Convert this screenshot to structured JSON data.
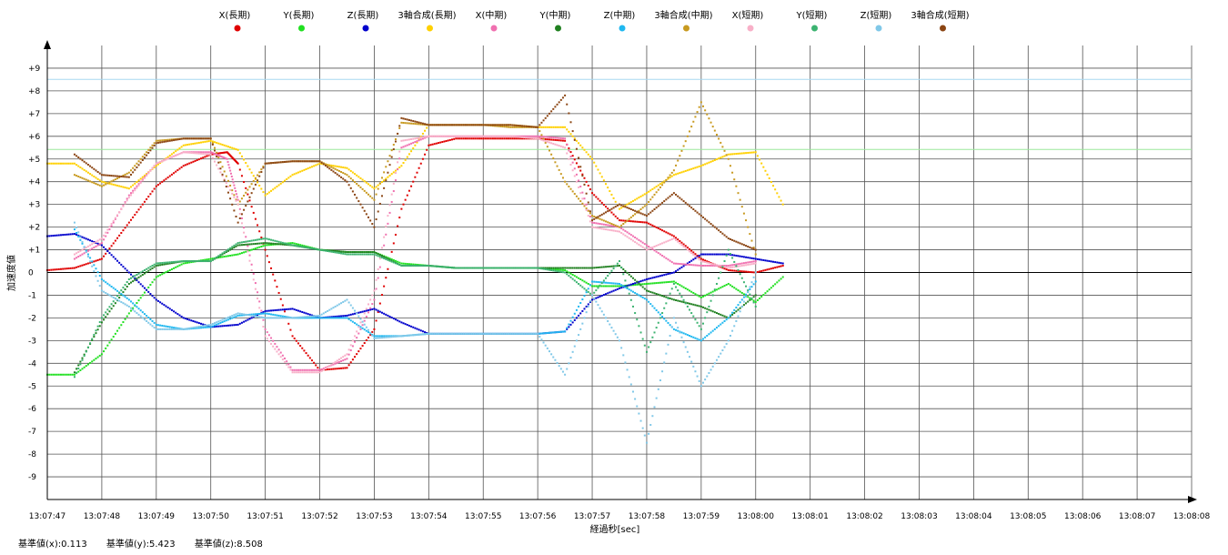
{
  "footer": {
    "base_x": "基準値(x):0.113",
    "base_y": "基準値(y):5.423",
    "base_z": "基準値(z):8.508"
  },
  "chart_data": {
    "type": "scatter",
    "xlabel": "経過秒[sec]",
    "ylabel": "加速度値",
    "ylim": [
      -10,
      10
    ],
    "x_ticks": [
      "13:07:47",
      "13:07:48",
      "13:07:49",
      "13:07:50",
      "13:07:51",
      "13:07:52",
      "13:07:53",
      "13:07:54",
      "13:07:55",
      "13:07:56",
      "13:07:57",
      "13:07:58",
      "13:07:59",
      "13:08:00",
      "13:08:01",
      "13:08:02",
      "13:08:03",
      "13:08:04",
      "13:08:05",
      "13:08:06",
      "13:08:07",
      "13:08:08"
    ],
    "y_ticks": [
      "-9",
      "-8",
      "-7",
      "-6",
      "-5",
      "-4",
      "-3",
      "-2",
      "-1",
      "0",
      "+1",
      "+2",
      "+3",
      "+4",
      "+5",
      "+6",
      "+7",
      "+8",
      "+9"
    ],
    "y_tick_values": [
      -9,
      -8,
      -7,
      -6,
      -5,
      -4,
      -3,
      -2,
      -1,
      0,
      1,
      2,
      3,
      4,
      5,
      6,
      7,
      8,
      9
    ],
    "grid": true,
    "legend_position": "top",
    "reference_lines": [
      {
        "value": 5.423,
        "color": "#9be89b"
      },
      {
        "value": 8.508,
        "color": "#a8d8f0"
      }
    ],
    "series": [
      {
        "name": "X(長期)",
        "color": "#e00000",
        "x": [
          0,
          0.5,
          1,
          1.5,
          2,
          2.5,
          3,
          3.3,
          3.5,
          4,
          4.5,
          5,
          5.5,
          6,
          6.5,
          7,
          7.5,
          8,
          8.5,
          9,
          9.5,
          10,
          10.5,
          11,
          11.5,
          12,
          12.5,
          13,
          13.5
        ],
        "y": [
          0.1,
          0.2,
          0.6,
          2.2,
          3.8,
          4.7,
          5.2,
          5.3,
          4.8,
          1.0,
          -2.8,
          -4.3,
          -4.2,
          -2.5,
          2.8,
          5.6,
          5.9,
          5.9,
          5.9,
          5.9,
          5.8,
          3.5,
          2.3,
          2.2,
          1.6,
          0.6,
          0.1,
          0,
          0.3
        ]
      },
      {
        "name": "Y(長期)",
        "color": "#20e020",
        "x": [
          0,
          0.5,
          1,
          1.5,
          2,
          2.5,
          3,
          3.5,
          4,
          4.5,
          5,
          5.5,
          6,
          6.5,
          7,
          7.5,
          8,
          8.5,
          9,
          9.5,
          10,
          10.5,
          11,
          11.5,
          12,
          12.5,
          13,
          13.5
        ],
        "y": [
          -4.5,
          -4.5,
          -3.6,
          -1.8,
          -0.2,
          0.4,
          0.6,
          0.8,
          1.2,
          1.3,
          1.0,
          0.9,
          0.9,
          0.4,
          0.3,
          0.2,
          0.2,
          0.2,
          0.2,
          0.1,
          -0.6,
          -0.6,
          -0.5,
          -0.4,
          -1.1,
          -0.5,
          -1.3,
          -0.2
        ]
      },
      {
        "name": "Z(長期)",
        "color": "#0000cc",
        "x": [
          0,
          0.5,
          1,
          1.5,
          2,
          2.5,
          3,
          3.5,
          4,
          4.5,
          5,
          5.5,
          6,
          6.5,
          7,
          7.5,
          8,
          8.5,
          9,
          9.5,
          10,
          10.5,
          11,
          11.5,
          12,
          12.5,
          13,
          13.5
        ],
        "y": [
          1.6,
          1.7,
          1.2,
          0,
          -1.2,
          -2.0,
          -2.4,
          -2.3,
          -1.7,
          -1.6,
          -2.0,
          -1.9,
          -1.6,
          -2.2,
          -2.7,
          -2.7,
          -2.7,
          -2.7,
          -2.7,
          -2.6,
          -1.2,
          -0.7,
          -0.3,
          0,
          0.8,
          0.8,
          0.6,
          0.4
        ]
      },
      {
        "name": "3軸合成(長期)",
        "color": "#ffd000",
        "x": [
          0,
          0.5,
          1,
          1.5,
          2,
          2.5,
          3,
          3.5,
          4,
          4.5,
          5,
          5.5,
          6,
          6.5,
          7,
          7.5,
          8,
          8.5,
          9,
          9.5,
          10,
          10.5,
          11,
          11.5,
          12,
          12.5,
          13,
          13.5
        ],
        "y": [
          4.8,
          4.8,
          4.0,
          3.7,
          4.7,
          5.6,
          5.8,
          5.4,
          3.4,
          4.3,
          4.8,
          4.6,
          3.7,
          4.7,
          6.5,
          6.5,
          6.5,
          6.5,
          6.4,
          6.4,
          5.0,
          2.8,
          3.5,
          4.3,
          4.7,
          5.2,
          5.3,
          3.0
        ]
      },
      {
        "name": "X(中期)",
        "color": "#f070b0",
        "x": [
          0.5,
          1,
          1.5,
          2,
          2.5,
          3,
          3.3,
          3.5,
          4,
          4.5,
          5,
          5.5,
          6,
          6.5,
          7,
          7.5,
          8,
          8.5,
          9,
          9.5,
          10,
          10.5,
          11,
          11.5,
          12,
          12.5,
          13
        ],
        "y": [
          0.6,
          1.3,
          3.4,
          4.8,
          5.3,
          5.3,
          5.0,
          3.2,
          -2.5,
          -4.3,
          -4.3,
          -3.8,
          -1.2,
          5.5,
          6.0,
          6.0,
          6.0,
          6.0,
          6.0,
          5.9,
          2.2,
          2.0,
          1.2,
          0.4,
          0.3,
          0.3,
          0.5
        ]
      },
      {
        "name": "Y(中期)",
        "color": "#208020",
        "x": [
          0.5,
          1,
          1.5,
          2,
          2.5,
          3,
          3.5,
          4,
          4.5,
          5,
          5.5,
          6,
          6.5,
          7,
          7.5,
          8,
          8.5,
          9,
          9.5,
          10,
          10.5,
          11,
          11.5,
          12,
          12.5,
          13
        ],
        "y": [
          -4.4,
          -2.2,
          -0.5,
          0.3,
          0.5,
          0.5,
          1.2,
          1.3,
          1.2,
          1.0,
          0.9,
          0.9,
          0.3,
          0.3,
          0.2,
          0.2,
          0.2,
          0.2,
          0.2,
          0.2,
          0.3,
          -0.8,
          -1.2,
          -1.5,
          -2.0,
          -1.0
        ]
      },
      {
        "name": "Z(中期)",
        "color": "#20b8f0",
        "x": [
          0.5,
          1,
          1.5,
          2,
          2.5,
          3,
          3.5,
          4,
          4.5,
          5,
          5.5,
          6,
          6.5,
          7,
          7.5,
          8,
          8.5,
          9,
          9.5,
          10,
          10.5,
          11,
          11.5,
          12,
          12.5,
          13
        ],
        "y": [
          1.9,
          -0.3,
          -1.2,
          -2.3,
          -2.5,
          -2.4,
          -1.9,
          -1.8,
          -2.0,
          -2.0,
          -2.0,
          -2.8,
          -2.8,
          -2.7,
          -2.7,
          -2.7,
          -2.7,
          -2.7,
          -2.6,
          -0.4,
          -0.5,
          -1.2,
          -2.5,
          -3.0,
          -2.0,
          -0.4
        ]
      },
      {
        "name": "3軸合成(中期)",
        "color": "#c89a20",
        "x": [
          0.5,
          1,
          1.5,
          2,
          2.5,
          3,
          3.5,
          4,
          4.5,
          5,
          5.5,
          6,
          6.5,
          7,
          7.5,
          8,
          8.5,
          9,
          9.5,
          10,
          10.5,
          11,
          11.5,
          12,
          12.5,
          13
        ],
        "y": [
          4.3,
          3.8,
          4.4,
          5.8,
          5.9,
          5.9,
          3.0,
          4.8,
          4.9,
          4.9,
          4.3,
          3.2,
          6.6,
          6.5,
          6.5,
          6.5,
          6.4,
          6.4,
          4.0,
          2.5,
          2.0,
          3.0,
          4.5,
          7.5,
          5.0,
          0.8
        ]
      },
      {
        "name": "X(短期)",
        "color": "#f8b0c8",
        "x": [
          0.5,
          1,
          1.5,
          2,
          2.5,
          3,
          3.5,
          4,
          4.5,
          5,
          5.5,
          6,
          6.5,
          7,
          7.5,
          8,
          8.5,
          9,
          9.5,
          10,
          10.5,
          11,
          11.5,
          12,
          12.5,
          13
        ],
        "y": [
          0.8,
          1.5,
          3.3,
          4.8,
          5.3,
          5.2,
          3.0,
          -2.8,
          -4.4,
          -4.4,
          -3.6,
          -0.8,
          5.8,
          6.0,
          6.0,
          6.0,
          6.0,
          5.9,
          5.5,
          2.0,
          1.8,
          1.0,
          1.5,
          0.5,
          0.2,
          0.4
        ]
      },
      {
        "name": "Y(短期)",
        "color": "#3cb371",
        "x": [
          0.5,
          1,
          1.5,
          2,
          2.5,
          3,
          3.5,
          4,
          4.5,
          5,
          5.5,
          6,
          6.5,
          7,
          7.5,
          8,
          8.5,
          9,
          9.5,
          10,
          10.5,
          11,
          11.5,
          12,
          12.5,
          13
        ],
        "y": [
          -4.6,
          -2.0,
          -0.3,
          0.4,
          0.5,
          0.5,
          1.3,
          1.5,
          1.2,
          1.0,
          0.8,
          0.8,
          0.3,
          0.3,
          0.2,
          0.2,
          0.2,
          0.2,
          0.0,
          -1.0,
          0.5,
          -3.5,
          -0.5,
          -2.5,
          1.0,
          -1.5
        ]
      },
      {
        "name": "Z(短期)",
        "color": "#80c8e8",
        "x": [
          0.5,
          1,
          1.5,
          2,
          2.5,
          3,
          3.5,
          4,
          4.5,
          5,
          5.5,
          6,
          6.5,
          7,
          7.5,
          8,
          8.5,
          9,
          9.5,
          10,
          10.5,
          11,
          11.5,
          12,
          12.5,
          13
        ],
        "y": [
          2.2,
          -0.8,
          -1.5,
          -2.5,
          -2.5,
          -2.3,
          -1.8,
          -2.0,
          -2.0,
          -1.9,
          -1.2,
          -2.9,
          -2.8,
          -2.7,
          -2.7,
          -2.7,
          -2.7,
          -2.7,
          -4.5,
          -1.0,
          -3.0,
          -7.5,
          -2.0,
          -5.0,
          -3.0,
          0.0
        ]
      },
      {
        "name": "3軸合成(短期)",
        "color": "#8b4513",
        "x": [
          0.5,
          1,
          1.5,
          2,
          2.5,
          3,
          3.5,
          4,
          4.5,
          5,
          5.5,
          6,
          6.5,
          7,
          7.5,
          8,
          8.5,
          9,
          9.5,
          10,
          10.5,
          11,
          11.5,
          12,
          12.5,
          13
        ],
        "y": [
          5.2,
          4.3,
          4.2,
          5.7,
          5.9,
          5.9,
          2.2,
          4.8,
          4.9,
          4.9,
          4.0,
          2.0,
          6.8,
          6.5,
          6.5,
          6.5,
          6.5,
          6.4,
          7.8,
          2.3,
          3.0,
          2.5,
          3.5,
          2.5,
          1.5,
          1.0
        ]
      }
    ]
  }
}
